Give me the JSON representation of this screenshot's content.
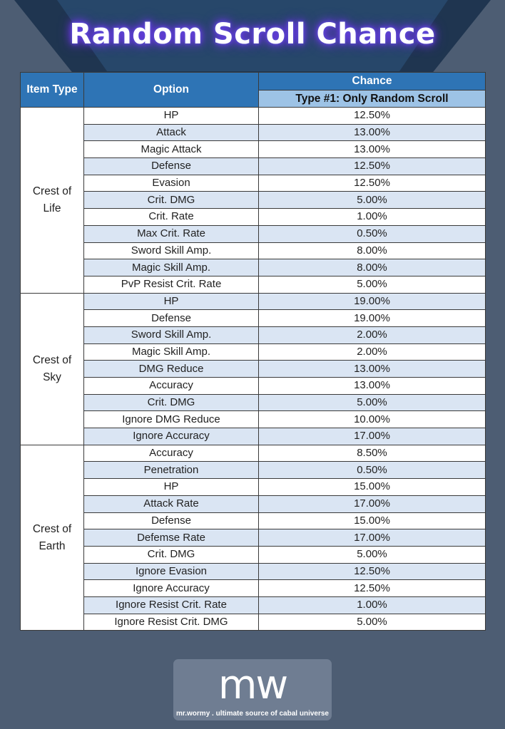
{
  "title": "Random Scroll Chance",
  "headers": {
    "item_type": "Item Type",
    "option": "Option",
    "chance": "Chance",
    "subheader": "Type #1: Only Random Scroll"
  },
  "groups": [
    {
      "item_type_line1": "Crest of",
      "item_type_line2": "Life",
      "rows": [
        {
          "option": "HP",
          "chance": "12.50%"
        },
        {
          "option": "Attack",
          "chance": "13.00%"
        },
        {
          "option": "Magic Attack",
          "chance": "13.00%"
        },
        {
          "option": "Defense",
          "chance": "12.50%"
        },
        {
          "option": "Evasion",
          "chance": "12.50%"
        },
        {
          "option": "Crit. DMG",
          "chance": "5.00%"
        },
        {
          "option": "Crit. Rate",
          "chance": "1.00%"
        },
        {
          "option": "Max Crit. Rate",
          "chance": "0.50%"
        },
        {
          "option": "Sword Skill Amp.",
          "chance": "8.00%"
        },
        {
          "option": "Magic Skill Amp.",
          "chance": "8.00%"
        },
        {
          "option": "PvP Resist Crit. Rate",
          "chance": "5.00%"
        }
      ]
    },
    {
      "item_type_line1": "Crest of",
      "item_type_line2": "Sky",
      "rows": [
        {
          "option": "HP",
          "chance": "19.00%"
        },
        {
          "option": "Defense",
          "chance": "19.00%"
        },
        {
          "option": "Sword Skill Amp.",
          "chance": "2.00%"
        },
        {
          "option": "Magic Skill Amp.",
          "chance": "2.00%"
        },
        {
          "option": "DMG Reduce",
          "chance": "13.00%"
        },
        {
          "option": "Accuracy",
          "chance": "13.00%"
        },
        {
          "option": "Crit. DMG",
          "chance": "5.00%"
        },
        {
          "option": "Ignore DMG Reduce",
          "chance": "10.00%"
        },
        {
          "option": "Ignore Accuracy",
          "chance": "17.00%"
        }
      ]
    },
    {
      "item_type_line1": "Crest of",
      "item_type_line2": "Earth",
      "rows": [
        {
          "option": "Accuracy",
          "chance": "8.50%"
        },
        {
          "option": "Penetration",
          "chance": "0.50%"
        },
        {
          "option": "HP",
          "chance": "15.00%"
        },
        {
          "option": "Attack Rate",
          "chance": "17.00%"
        },
        {
          "option": "Defense",
          "chance": "15.00%"
        },
        {
          "option": "Defemse Rate",
          "chance": "17.00%"
        },
        {
          "option": "Crit. DMG",
          "chance": "5.00%"
        },
        {
          "option": "Ignore Evasion",
          "chance": "12.50%"
        },
        {
          "option": "Ignore Accuracy",
          "chance": "12.50%"
        },
        {
          "option": "Ignore Resist Crit. Rate",
          "chance": "1.00%"
        },
        {
          "option": "Ignore Resist Crit. DMG",
          "chance": "5.00%"
        }
      ]
    }
  ],
  "logo": {
    "mark": "mw",
    "tagline": "mr.wormy . ultimate source of cabal universe"
  },
  "colors": {
    "header": "#2e74b5",
    "subheader": "#9dc3e6",
    "row_alt": "#dae5f3",
    "background": "#4d5d73",
    "title_glow": "#7a3cff"
  }
}
